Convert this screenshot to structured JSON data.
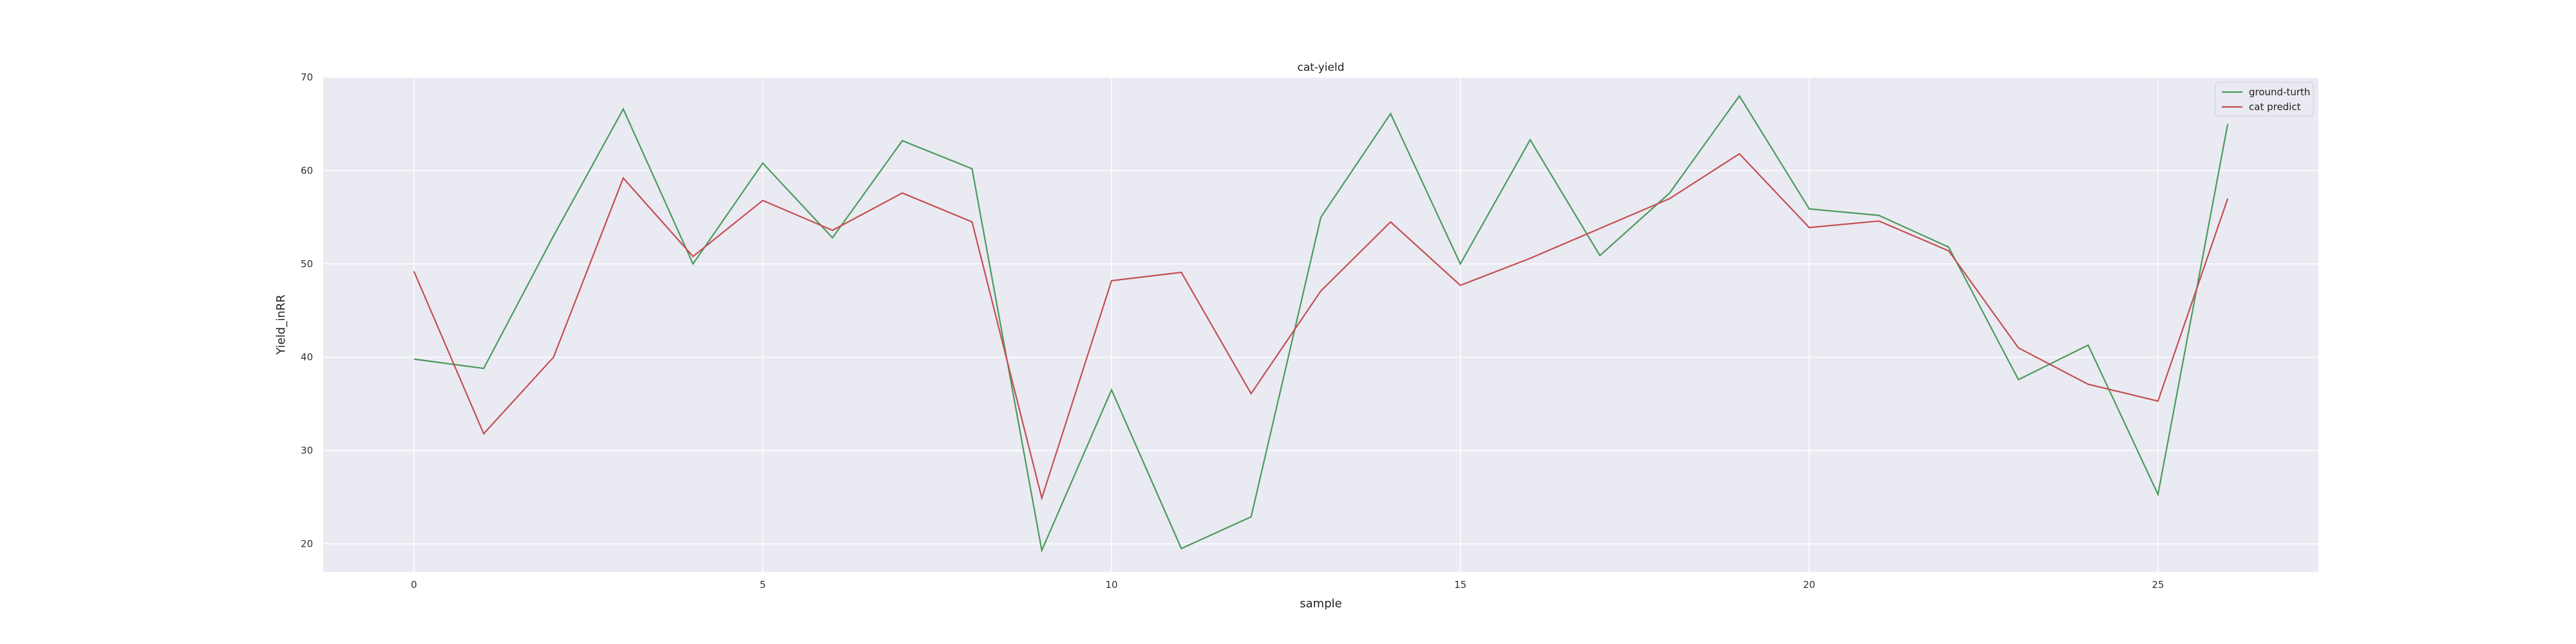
{
  "chart_data": {
    "type": "line",
    "title": "cat-yield",
    "xlabel": "sample",
    "ylabel": "Yield_inRR",
    "xlim": [
      -1.3,
      27.3
    ],
    "ylim": [
      17,
      70
    ],
    "xticks": [
      0,
      5,
      10,
      15,
      20,
      25
    ],
    "yticks": [
      20,
      30,
      40,
      50,
      60,
      70
    ],
    "grid": true,
    "legend_position": "top-right",
    "x": [
      0,
      1,
      2,
      3,
      4,
      5,
      6,
      7,
      8,
      9,
      10,
      11,
      12,
      13,
      14,
      15,
      16,
      17,
      18,
      19,
      20,
      21,
      22,
      23,
      24,
      25,
      26
    ],
    "series": [
      {
        "name": "ground-turth",
        "color": "#4a9a5c",
        "values": [
          39.8,
          38.8,
          53.0,
          66.6,
          50.0,
          60.8,
          52.8,
          63.2,
          60.2,
          19.3,
          36.5,
          19.5,
          22.9,
          55.0,
          66.1,
          50.0,
          63.3,
          50.9,
          57.6,
          68.0,
          55.9,
          55.2,
          51.8,
          37.6,
          41.3,
          25.3,
          65.0
        ]
      },
      {
        "name": "cat predict",
        "color": "#c44e52",
        "values": [
          49.2,
          31.8,
          40.0,
          59.2,
          50.8,
          56.8,
          53.6,
          57.6,
          54.5,
          24.9,
          48.2,
          49.1,
          36.1,
          47.1,
          54.5,
          47.7,
          50.6,
          53.8,
          57.0,
          61.8,
          53.9,
          54.6,
          51.4,
          41.0,
          37.1,
          35.3,
          57.0
        ]
      }
    ]
  }
}
